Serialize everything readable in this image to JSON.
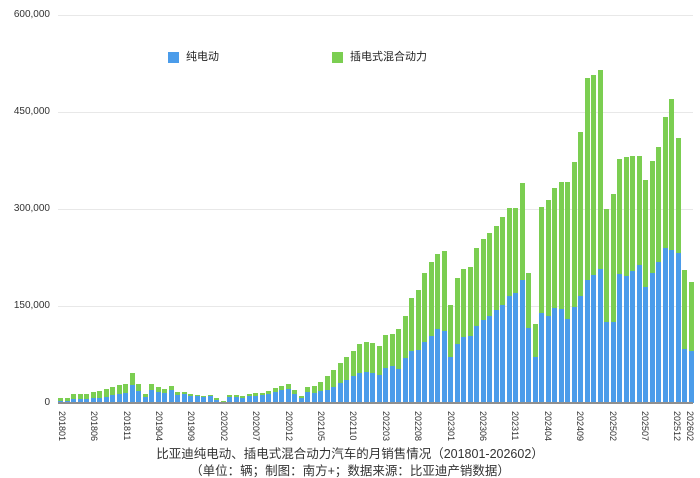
{
  "chart_data": {
    "type": "bar",
    "stacked": true,
    "title": "比亚迪纯电动、插电式混合动力汽车的月销售情况（201801-202602）",
    "subtitle": "（单位：辆；制图：南方+；数据来源：比亚迪产销数据）",
    "grid": true,
    "legend_position": "top-inside",
    "ylim": [
      0,
      600000
    ],
    "y_ticks": [
      "600,000",
      "450,000",
      "300,000",
      "150,000",
      "0"
    ],
    "x_label_interval": 5,
    "categories": [
      "201801",
      "201802",
      "201803",
      "201804",
      "201805",
      "201806",
      "201807",
      "201808",
      "201809",
      "201810",
      "201811",
      "201812",
      "201901",
      "201902",
      "201903",
      "201904",
      "201905",
      "201906",
      "201907",
      "201908",
      "201909",
      "201910",
      "201911",
      "201912",
      "202001",
      "202002",
      "202003",
      "202004",
      "202005",
      "202006",
      "202007",
      "202008",
      "202009",
      "202010",
      "202011",
      "202012",
      "202101",
      "202102",
      "202103",
      "202104",
      "202105",
      "202106",
      "202107",
      "202108",
      "202109",
      "202110",
      "202111",
      "202112",
      "202201",
      "202202",
      "202203",
      "202204",
      "202205",
      "202206",
      "202207",
      "202208",
      "202209",
      "202210",
      "202211",
      "202212",
      "202301",
      "202302",
      "202303",
      "202304",
      "202305",
      "202306",
      "202307",
      "202308",
      "202309",
      "202310",
      "202311",
      "202312",
      "202401",
      "202402",
      "202403",
      "202404",
      "202405",
      "202406",
      "202407",
      "202408",
      "202409",
      "202410",
      "202411",
      "202412",
      "202501",
      "202502",
      "202503",
      "202504",
      "202505",
      "202506",
      "202507",
      "202508",
      "202509",
      "202510",
      "202511",
      "202512",
      "202601",
      "202602"
    ],
    "series": [
      {
        "name": "纯电动",
        "color": "#4b9cea",
        "values": [
          3200,
          3500,
          5500,
          5800,
          5900,
          7100,
          8500,
          10000,
          12500,
          14100,
          15100,
          27900,
          19200,
          9700,
          20200,
          17400,
          16100,
          20900,
          12900,
          13400,
          11100,
          10500,
          9300,
          10800,
          5200,
          2000,
          9000,
          9600,
          8400,
          10600,
          11300,
          11700,
          14200,
          17300,
          20000,
          21600,
          14500,
          7300,
          16300,
          16100,
          18700,
          20100,
          25000,
          30400,
          36300,
          41200,
          46100,
          48300,
          46600,
          43200,
          53700,
          57400,
          53300,
          69500,
          81200,
          82700,
          94900,
          103200,
          113900,
          111900,
          71300,
          90600,
          102700,
          104400,
          119600,
          128200,
          134800,
          143100,
          151200,
          165500,
          170200,
          190800,
          115400,
          71200,
          139900,
          134500,
          146400,
          145200,
          130100,
          148500,
          165000,
          189600,
          198100,
          207700,
          125400,
          124900,
          199000,
          196000,
          204000,
          213000,
          180000,
          201000,
          218000,
          240000,
          237000,
          232000,
          84000,
          80000
        ]
      },
      {
        "name": "插电式混合动力",
        "color": "#7bce51",
        "values": [
          4100,
          4700,
          7700,
          8100,
          8300,
          9900,
          10400,
          11200,
          12500,
          13600,
          13600,
          18800,
          9500,
          4700,
          9900,
          6600,
          5800,
          5700,
          3700,
          3300,
          2600,
          2100,
          1900,
          2300,
          1900,
          800,
          3300,
          3400,
          2900,
          3600,
          3800,
          3800,
          4800,
          5900,
          6700,
          7200,
          5700,
          3100,
          7900,
          9600,
          14100,
          21300,
          25500,
          31000,
          34800,
          39800,
          45100,
          45600,
          46600,
          45100,
          51200,
          48600,
          61600,
          64500,
          81300,
          92200,
          106400,
          114600,
          116500,
          123300,
          80000,
          103100,
          104400,
          105900,
          120600,
          124800,
          127400,
          131300,
          136300,
          136300,
          131700,
          150200,
          86100,
          51100,
          162600,
          178700,
          185400,
          196500,
          212300,
          224600,
          254400,
          313100,
          308700,
          307100,
          175100,
          197900,
          178400,
          184100,
          178500,
          169600,
          164300,
          172600,
          178300,
          201700,
          233000,
          178000,
          121000,
          107000
        ]
      }
    ]
  }
}
